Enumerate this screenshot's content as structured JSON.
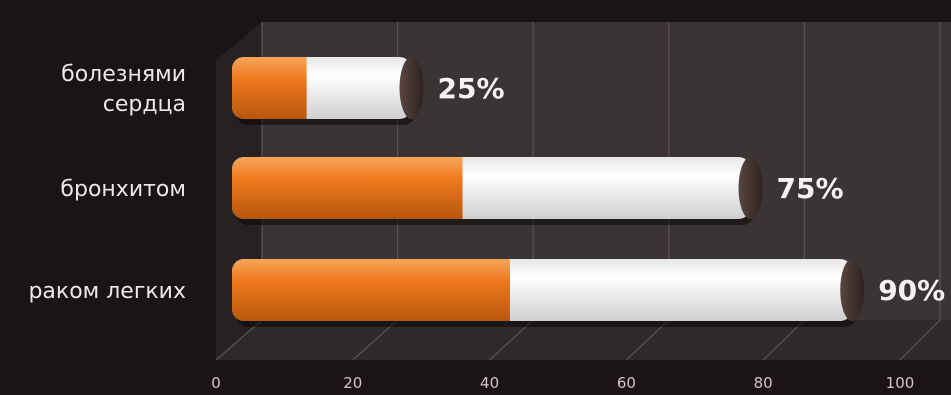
{
  "chart_data": {
    "type": "bar",
    "orientation": "horizontal",
    "categories": [
      "болезнями\nсердца",
      "бронхитом",
      "раком легких"
    ],
    "series": [
      {
        "values": [
          25,
          75,
          90
        ]
      }
    ],
    "orange_part": [
      11,
      34,
      41
    ],
    "value_labels": [
      "25%",
      "75%",
      "90%"
    ],
    "x_ticks": [
      "0",
      "20",
      "40",
      "60",
      "80",
      "100"
    ],
    "xlim": [
      0,
      100
    ],
    "grid": true,
    "colors": {
      "background": "#1a1414",
      "wall": "#3a3434",
      "floor": "#2f2929",
      "grid": "#5a5353",
      "orange": "#ef7a1f",
      "white": "#ffffff",
      "cap_dark": "#3e2e2a"
    }
  }
}
